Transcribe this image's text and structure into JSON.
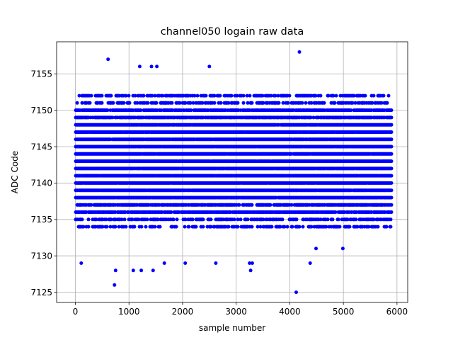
{
  "chart_data": {
    "type": "scatter",
    "title": "channel050 logain raw data",
    "xlabel": "sample number",
    "ylabel": "ADC Code",
    "xlim": [
      -350,
      6200
    ],
    "ylim": [
      7123.6,
      7159.4
    ],
    "xticks": [
      0,
      1000,
      2000,
      3000,
      4000,
      5000,
      6000
    ],
    "yticks": [
      7125,
      7130,
      7135,
      7140,
      7145,
      7150,
      7155
    ],
    "grid": true,
    "marker_color": "#0000ff",
    "n_samples": 5900,
    "value_band": [
      7134,
      7152
    ],
    "series": [
      {
        "outliers": [
          {
            "x": 110,
            "y": 7129
          },
          {
            "x": 610,
            "y": 7157
          },
          {
            "x": 730,
            "y": 7126
          },
          {
            "x": 750,
            "y": 7128
          },
          {
            "x": 1080,
            "y": 7128
          },
          {
            "x": 1200,
            "y": 7156
          },
          {
            "x": 1230,
            "y": 7128
          },
          {
            "x": 1420,
            "y": 7156
          },
          {
            "x": 1450,
            "y": 7128
          },
          {
            "x": 1520,
            "y": 7156
          },
          {
            "x": 1660,
            "y": 7129
          },
          {
            "x": 2050,
            "y": 7129
          },
          {
            "x": 2500,
            "y": 7156
          },
          {
            "x": 2620,
            "y": 7129
          },
          {
            "x": 3250,
            "y": 7129
          },
          {
            "x": 3270,
            "y": 7128
          },
          {
            "x": 3300,
            "y": 7129
          },
          {
            "x": 4120,
            "y": 7125
          },
          {
            "x": 4180,
            "y": 7158
          },
          {
            "x": 4380,
            "y": 7129
          },
          {
            "x": 4490,
            "y": 7131
          },
          {
            "x": 4990,
            "y": 7131
          }
        ]
      }
    ]
  }
}
